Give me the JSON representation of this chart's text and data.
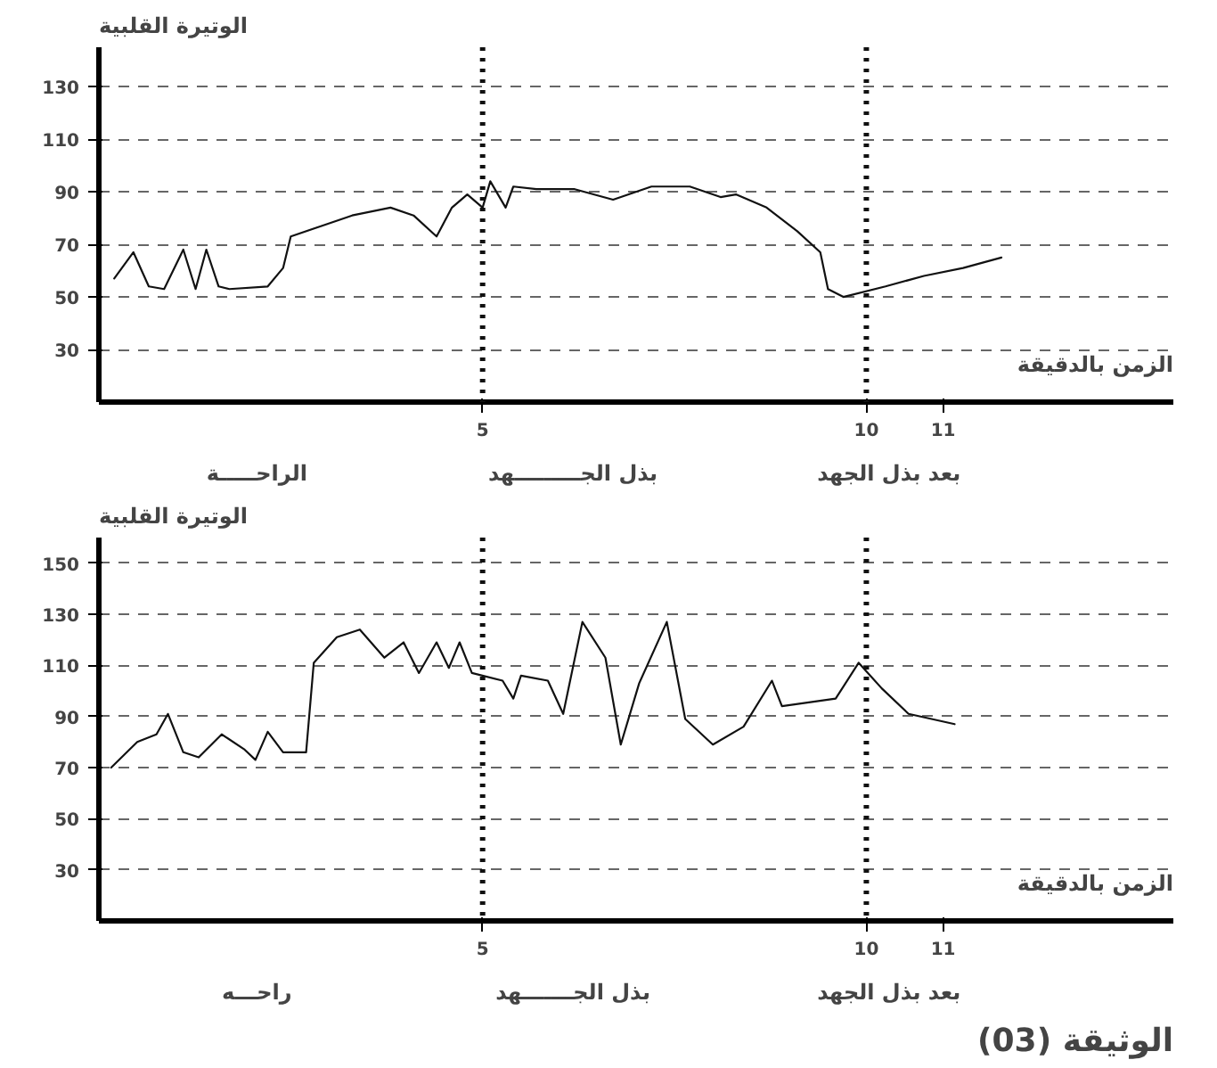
{
  "chart_data": [
    {
      "type": "line",
      "xlabel": "الزمن بالدقيقة",
      "ylabel": "الوتيرة القلبية",
      "xlim": [
        0,
        14
      ],
      "ylim": [
        10,
        145
      ],
      "xticks": [
        5,
        10,
        11
      ],
      "yticks": [
        30,
        50,
        70,
        90,
        110,
        130
      ],
      "grid": "y",
      "line_style": "solid",
      "x": [
        0.2,
        0.45,
        0.65,
        0.85,
        1.1,
        1.26,
        1.4,
        1.56,
        1.7,
        2.2,
        2.4,
        2.5,
        2.9,
        3.3,
        3.8,
        4.1,
        4.4,
        4.6,
        4.8,
        5.0,
        5.1,
        5.3,
        5.4,
        5.7,
        6.2,
        6.7,
        7.2,
        7.7,
        8.1,
        8.3,
        8.7,
        9.1,
        9.4,
        9.5,
        9.7,
        10.25,
        10.75,
        11.26,
        11.76
      ],
      "series": [
        {
          "color": "#111111",
          "values": [
            57,
            67,
            54,
            53,
            68,
            53,
            68,
            54,
            53,
            54,
            61,
            73,
            77,
            81,
            84,
            81,
            73,
            84,
            89,
            84,
            94,
            84,
            92,
            91,
            91,
            87,
            92,
            92,
            88,
            89,
            84,
            75,
            67,
            53,
            50,
            54,
            58,
            61,
            65
          ]
        }
      ],
      "ref_lines": [
        {
          "axis": "x",
          "value": 5,
          "color": "#111111",
          "line_style": "dotted"
        },
        {
          "axis": "x",
          "value": 10,
          "color": "#111111",
          "line_style": "dotted"
        }
      ],
      "annotations": [
        "الراحـــــة",
        "بذل الجـــــــــهد",
        "بعد بذل الجهد"
      ]
    },
    {
      "type": "line",
      "xlabel": "الزمن بالدقيقة",
      "ylabel": "الوتيرة القلبية",
      "xlim": [
        0,
        14
      ],
      "ylim": [
        10,
        160
      ],
      "xticks": [
        5,
        10,
        11
      ],
      "yticks": [
        30,
        50,
        70,
        90,
        110,
        130,
        150
      ],
      "grid": "y",
      "line_style": "solid",
      "x": [
        0.16,
        0.5,
        0.75,
        0.9,
        1.1,
        1.3,
        1.6,
        1.9,
        2.04,
        2.2,
        2.4,
        2.7,
        2.8,
        3.1,
        3.4,
        3.72,
        3.97,
        4.17,
        4.4,
        4.56,
        4.7,
        4.86,
        5.26,
        5.4,
        5.5,
        5.85,
        6.05,
        6.3,
        6.6,
        6.8,
        7.04,
        7.4,
        7.64,
        8.0,
        8.4,
        8.77,
        8.9,
        9.6,
        9.9,
        10.2,
        10.55,
        11.15
      ],
      "series": [
        {
          "color": "#111111",
          "values": [
            70,
            80,
            83,
            91,
            76,
            74,
            83,
            77,
            73,
            84,
            76,
            76,
            111,
            121,
            124,
            113,
            119,
            107,
            119,
            109,
            119,
            107,
            104,
            97,
            106,
            104,
            91,
            127,
            113,
            79,
            103,
            127,
            89,
            79,
            86,
            104,
            94,
            97,
            111,
            101,
            91,
            87
          ]
        }
      ],
      "ref_lines": [
        {
          "axis": "x",
          "value": 5,
          "color": "#111111",
          "line_style": "dotted"
        },
        {
          "axis": "x",
          "value": 10,
          "color": "#111111",
          "line_style": "dotted"
        }
      ],
      "annotations": [
        "راحـــه",
        "بذل الجـــــــهد",
        "بعد بذل الجهد",
        "الوثيقة (03)"
      ]
    }
  ]
}
